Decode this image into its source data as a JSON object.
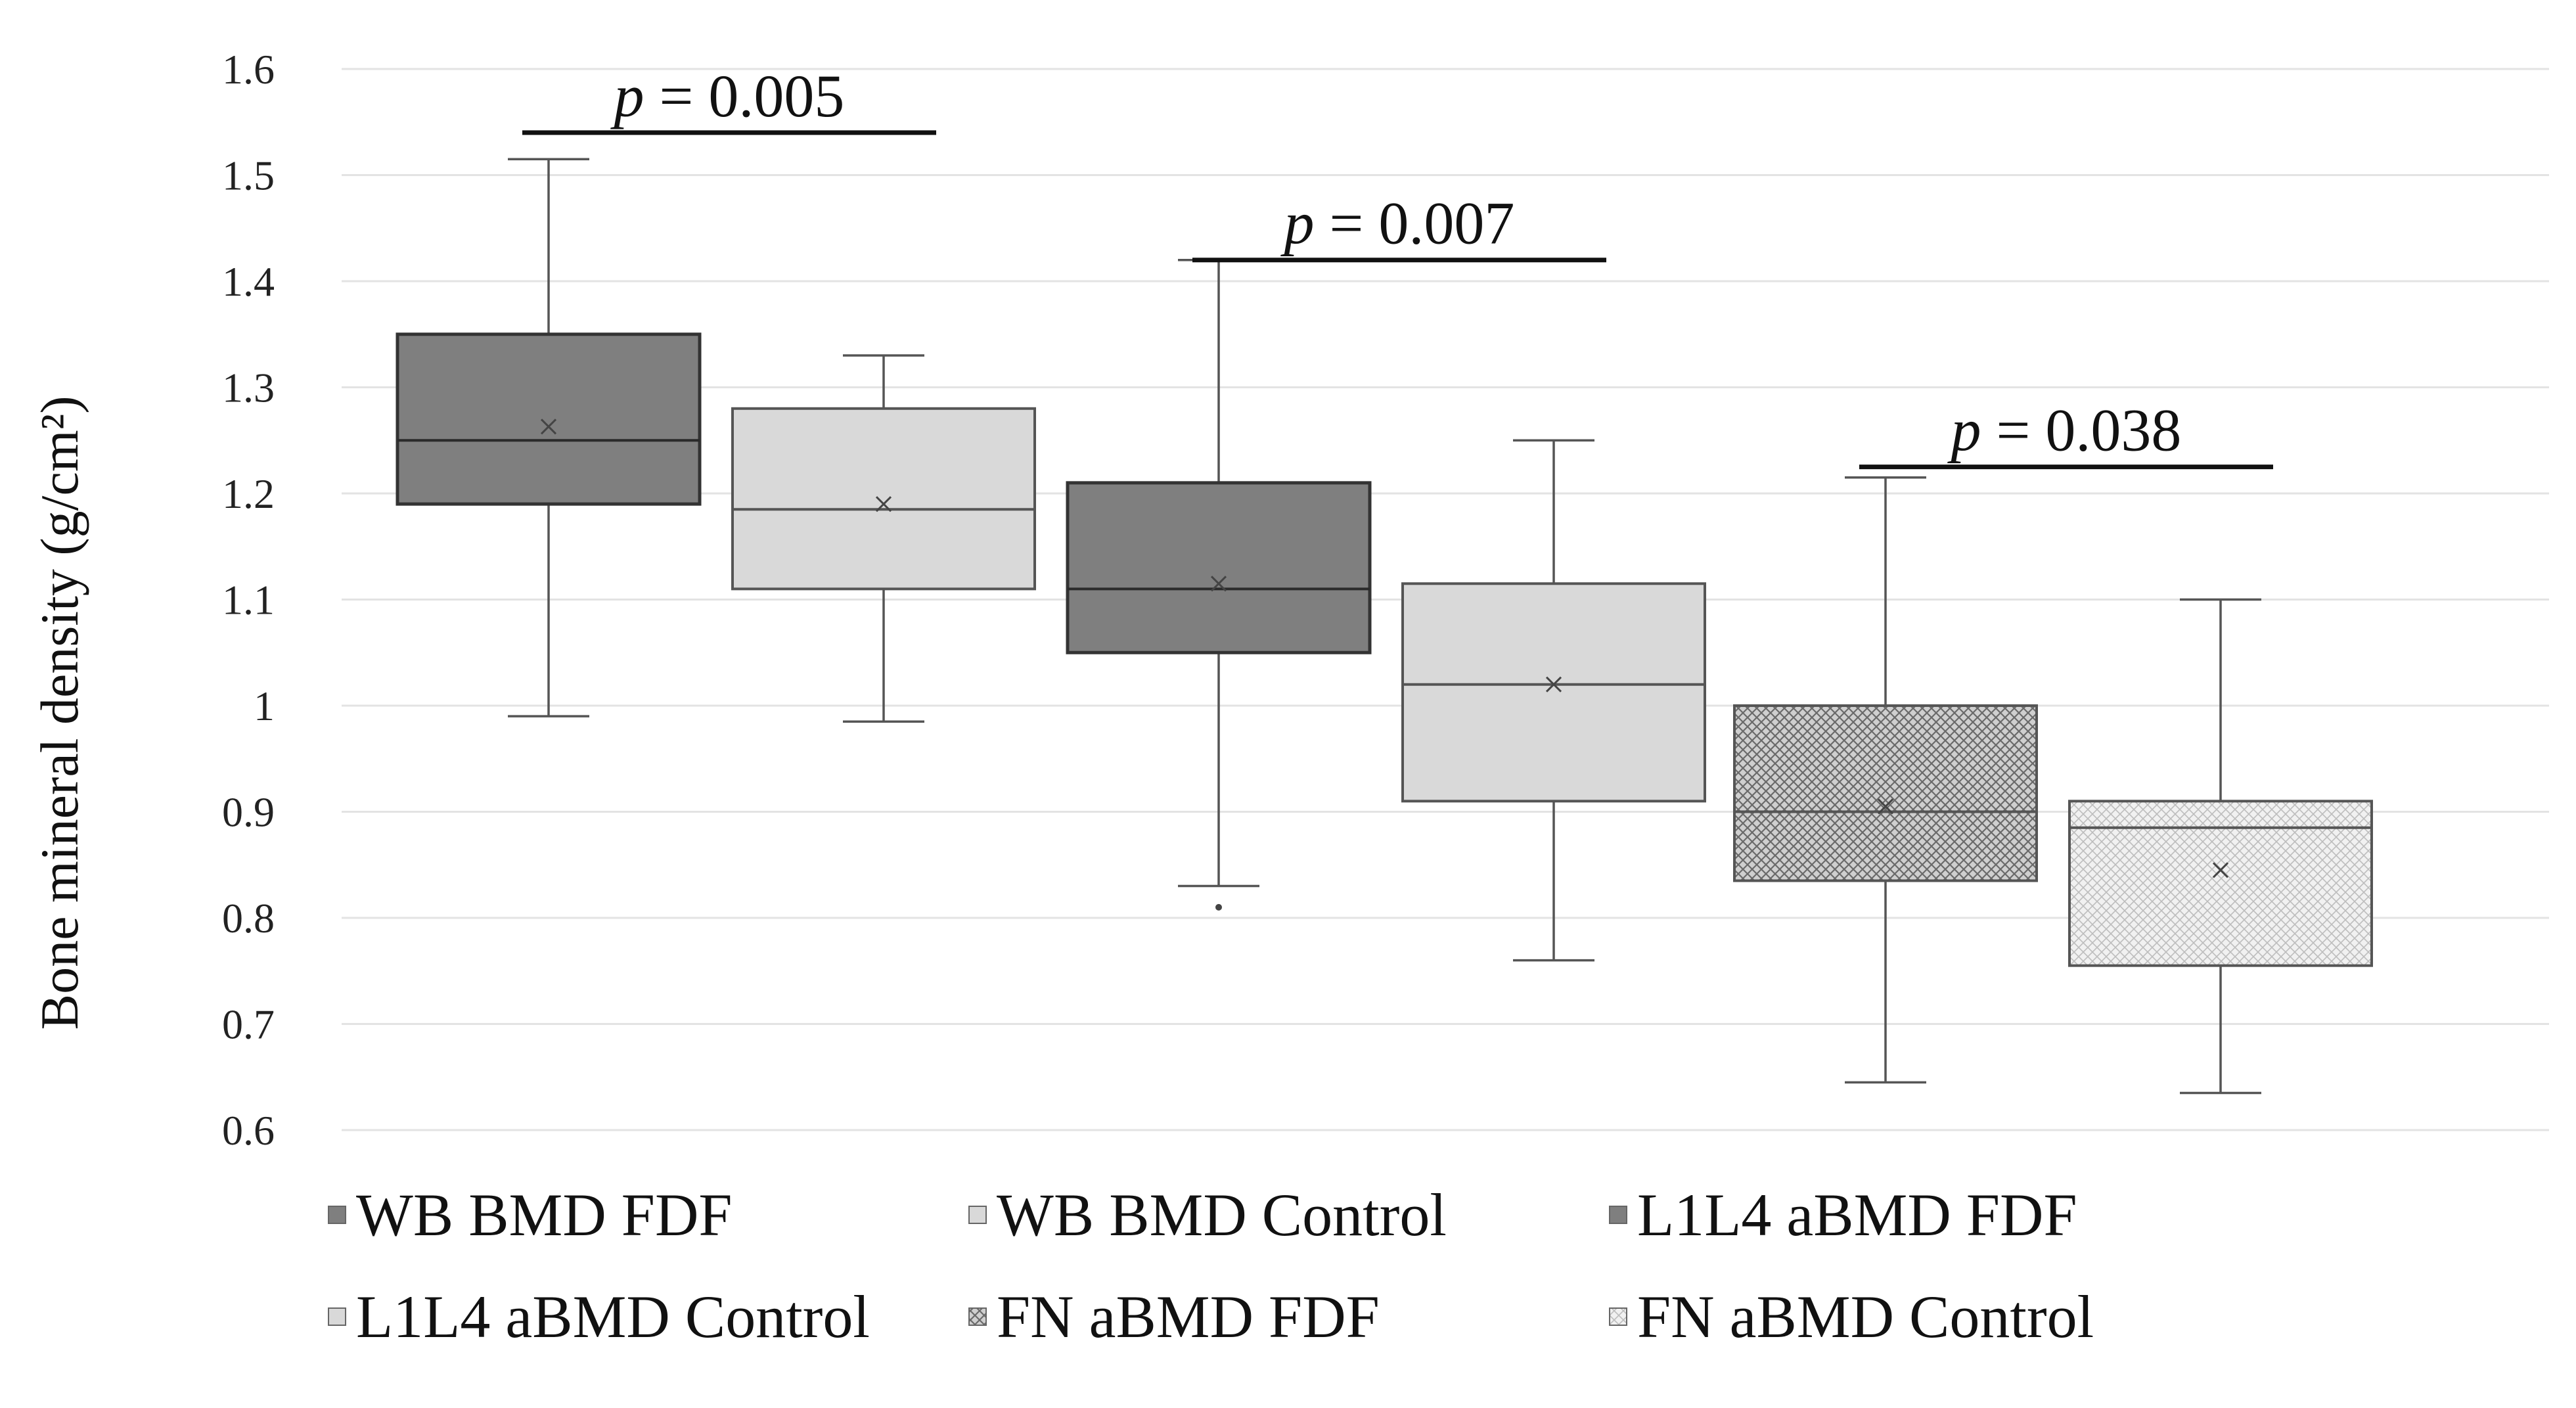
{
  "chart_data": {
    "type": "boxplot",
    "ylabel": "Bone mineral density (g/cm²)",
    "xlabel": "",
    "ylim": [
      0.6,
      1.6
    ],
    "yticks": [
      {
        "value": 0.6,
        "label": "0.6"
      },
      {
        "value": 0.7,
        "label": "0.7"
      },
      {
        "value": 0.8,
        "label": "0.8"
      },
      {
        "value": 0.9,
        "label": "0.9"
      },
      {
        "value": 1.0,
        "label": "1"
      },
      {
        "value": 1.1,
        "label": "1.1"
      },
      {
        "value": 1.2,
        "label": "1.2"
      },
      {
        "value": 1.3,
        "label": "1.3"
      },
      {
        "value": 1.4,
        "label": "1.4"
      },
      {
        "value": 1.5,
        "label": "1.5"
      },
      {
        "value": 1.6,
        "label": "1.6"
      }
    ],
    "grid": true,
    "legend_position": "bottom",
    "series": [
      {
        "name": "WB BMD FDF",
        "fill": "#7f7f7f",
        "pattern": "solid",
        "whisker_low": 0.99,
        "q1": 1.19,
        "median": 1.25,
        "q3": 1.35,
        "whisker_high": 1.515,
        "mean": 1.263,
        "outliers": []
      },
      {
        "name": "WB BMD Control",
        "fill": "#d9d9d9",
        "pattern": "solid",
        "whisker_low": 0.985,
        "q1": 1.11,
        "median": 1.185,
        "q3": 1.28,
        "whisker_high": 1.33,
        "mean": 1.19,
        "outliers": []
      },
      {
        "name": "L1L4 aBMD FDF",
        "fill": "#7f7f7f",
        "pattern": "solid",
        "whisker_low": 0.83,
        "q1": 1.05,
        "median": 1.11,
        "q3": 1.21,
        "whisker_high": 1.42,
        "mean": 1.115,
        "outliers": [
          0.81
        ]
      },
      {
        "name": "L1L4 aBMD Control",
        "fill": "#d9d9d9",
        "pattern": "solid",
        "whisker_low": 0.76,
        "q1": 0.91,
        "median": 1.02,
        "q3": 1.115,
        "whisker_high": 1.25,
        "mean": 1.02,
        "outliers": []
      },
      {
        "name": "FN aBMD FDF",
        "fill": "#bdbdbd",
        "pattern": "crosshatch",
        "whisker_low": 0.645,
        "q1": 0.835,
        "median": 0.9,
        "q3": 1.0,
        "whisker_high": 1.215,
        "mean": 0.905,
        "outliers": []
      },
      {
        "name": "FN aBMD Control",
        "fill": "#ededed",
        "pattern": "light-hatch",
        "whisker_low": 0.635,
        "q1": 0.755,
        "median": 0.885,
        "q3": 0.91,
        "whisker_high": 1.1,
        "mean": 0.845,
        "outliers": []
      }
    ],
    "annotations": [
      {
        "from_box": 0,
        "to_box": 1,
        "y": 1.54,
        "italic": "p",
        "text": " = 0.005"
      },
      {
        "from_box": 2,
        "to_box": 3,
        "y": 1.42,
        "italic": "p",
        "text": " = 0.007"
      },
      {
        "from_box": 4,
        "to_box": 5,
        "y": 1.225,
        "italic": "p",
        "text": " = 0.038"
      }
    ],
    "colors": {
      "grid": "#e3e3e3",
      "whisker": "#555555",
      "box_stroke": "#555555",
      "dark_stroke": "#333333",
      "text": "#111111"
    }
  }
}
